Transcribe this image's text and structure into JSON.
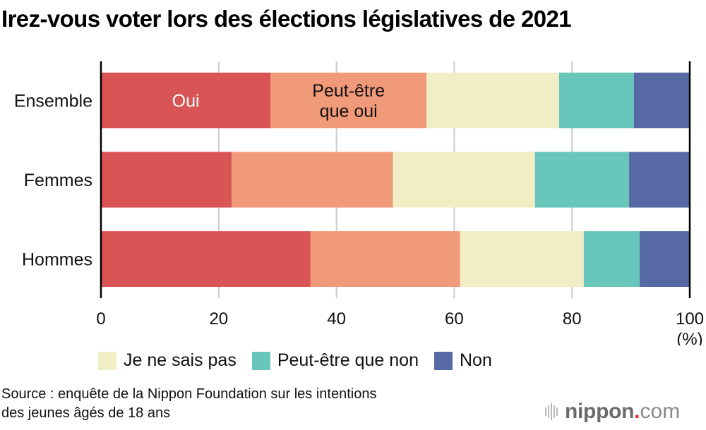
{
  "title": "Irez-vous voter lors des élections législatives de 2021",
  "chart_data": {
    "type": "bar",
    "orientation": "horizontal",
    "stacked": true,
    "title": "Irez-vous voter lors des élections législatives de 2021",
    "categories": [
      "Ensemble",
      "Femmes",
      "Hommes"
    ],
    "series": [
      {
        "name": "Oui",
        "color": "#d95555",
        "values": [
          28.8,
          22.2,
          35.6
        ]
      },
      {
        "name": "Peut-être que oui",
        "color": "#f19a7a",
        "values": [
          26.5,
          27.4,
          25.4
        ]
      },
      {
        "name": "Je ne sais pas",
        "color": "#f1eec5",
        "values": [
          22.5,
          24.1,
          21.0
        ]
      },
      {
        "name": "Peut-être que non",
        "color": "#69c6bb",
        "values": [
          12.7,
          16.0,
          9.5
        ]
      },
      {
        "name": "Non",
        "color": "#5669a4",
        "values": [
          9.5,
          10.3,
          8.5
        ]
      }
    ],
    "inline_labels": [
      {
        "series": "Oui",
        "category": "Ensemble",
        "lines": [
          "Oui"
        ],
        "color": "#ffffff"
      },
      {
        "series": "Peut-être que oui",
        "category": "Ensemble",
        "lines": [
          "Peut-être",
          "que oui"
        ],
        "color": "#111111"
      }
    ],
    "xlim": [
      0,
      100
    ],
    "xticks": [
      0,
      20,
      40,
      60,
      80,
      100
    ],
    "xtick_labels": [
      "0",
      "20",
      "40",
      "60",
      "80",
      "100"
    ],
    "xlabel": "",
    "xunit": "(%)",
    "ylabel": "",
    "grid": true,
    "legend": {
      "placement": "bottom",
      "entries": [
        "Je ne sais pas",
        "Peut-être que non",
        "Non"
      ]
    }
  },
  "legend_items": [
    {
      "label": "Je ne sais pas",
      "color": "#f1eec5"
    },
    {
      "label": "Peut-être que non",
      "color": "#69c6bb"
    },
    {
      "label": "Non",
      "color": "#5669a4"
    }
  ],
  "source": {
    "line1": "Source : enquête de la Nippon Foundation sur les intentions",
    "line2": "des jeunes âgés de 18 ans"
  },
  "logo": {
    "name": "nippon",
    "dot": ".",
    "tld": "com",
    "icon": "sound-bars-icon"
  }
}
